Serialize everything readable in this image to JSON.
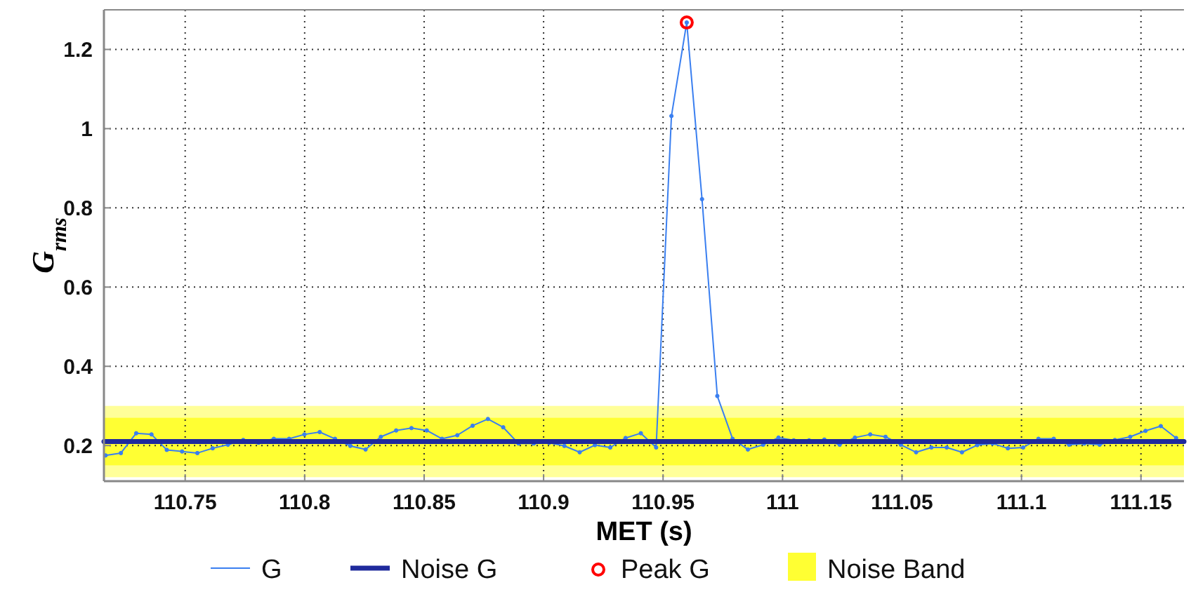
{
  "chart_data": {
    "type": "line",
    "xlabel": "MET (s)",
    "ylabel": "G$_{rms}$",
    "xlim": [
      110.716,
      111.168
    ],
    "ylim": [
      0.11,
      1.3
    ],
    "xticks": [
      110.75,
      110.8,
      110.85,
      110.9,
      110.95,
      111,
      111.05,
      111.1,
      111.15
    ],
    "yticks": [
      0.2,
      0.4,
      0.6,
      0.8,
      1,
      1.2
    ],
    "grid": true,
    "legend": "bottom",
    "bands": [
      {
        "axis": "y",
        "from": 0.12,
        "to": 0.3,
        "color": "#ffff99"
      },
      {
        "axis": "y",
        "from": 0.15,
        "to": 0.27,
        "color": "#ffff33",
        "label": "Noise Band"
      }
    ],
    "series": [
      {
        "name": "G",
        "color": "#3a7ff0",
        "marker": "circle",
        "line_style": "solid",
        "x": [
          110.7167,
          110.7231,
          110.7295,
          110.7359,
          110.7423,
          110.7487,
          110.7551,
          110.7615,
          110.7679,
          110.7743,
          110.7807,
          110.7871,
          110.7935,
          110.7999,
          110.8063,
          110.8127,
          110.8191,
          110.8255,
          110.8319,
          110.8383,
          110.8447,
          110.8511,
          110.8575,
          110.8639,
          110.8703,
          110.8767,
          110.8831,
          110.8895,
          110.8959,
          110.9023,
          110.9087,
          110.9151,
          110.9215,
          110.9279,
          110.9343,
          110.9407,
          110.9471,
          110.9535,
          110.9599,
          110.9663,
          110.9727,
          110.9791,
          110.9855,
          110.9919,
          110.9983,
          111.0047,
          111.0111,
          111.0175,
          111.0239,
          111.0303,
          111.0367,
          111.0431,
          111.0495,
          111.0559,
          111.0623,
          111.0687,
          111.0751,
          111.0815,
          111.0879,
          111.0943,
          111.1007,
          111.1071,
          111.1135,
          111.1199,
          111.1263,
          111.1327,
          111.1391,
          111.1455,
          111.1519,
          111.1583,
          111.1647
        ],
        "values": [
          0.175,
          0.181,
          0.231,
          0.228,
          0.189,
          0.185,
          0.181,
          0.193,
          0.202,
          0.214,
          0.207,
          0.217,
          0.217,
          0.228,
          0.234,
          0.217,
          0.199,
          0.19,
          0.222,
          0.238,
          0.244,
          0.238,
          0.217,
          0.226,
          0.25,
          0.267,
          0.246,
          0.205,
          0.205,
          0.207,
          0.199,
          0.183,
          0.201,
          0.195,
          0.219,
          0.231,
          0.195,
          1.032,
          1.268,
          0.822,
          0.325,
          0.217,
          0.19,
          0.202,
          0.22,
          0.213,
          0.213,
          0.215,
          0.202,
          0.22,
          0.228,
          0.222,
          0.202,
          0.183,
          0.195,
          0.195,
          0.183,
          0.201,
          0.205,
          0.193,
          0.195,
          0.217,
          0.217,
          0.202,
          0.205,
          0.202,
          0.214,
          0.222,
          0.237,
          0.249,
          0.219
        ]
      },
      {
        "name": "Noise G",
        "type": "line",
        "color": "#1f2a9c",
        "marker": "none",
        "line_style": "solid",
        "x": [
          110.716,
          111.168
        ],
        "values": [
          0.21,
          0.21
        ]
      },
      {
        "name": "Peak G",
        "type": "scatter",
        "color": "#ff0000",
        "marker": "circle",
        "x": [
          110.9599
        ],
        "values": [
          1.268
        ]
      }
    ]
  }
}
